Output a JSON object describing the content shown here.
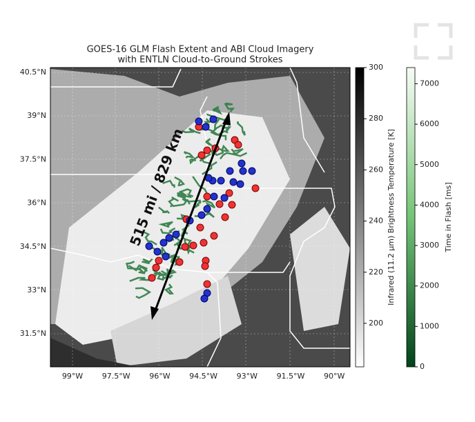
{
  "map": {
    "title": [
      "GOES-16 GLM Flash Extent and ABI Cloud Imagery",
      "with ENTLN Cloud-to-Ground Strokes"
    ],
    "lat_labels": [
      "40.5°N",
      "39°N",
      "37.5°N",
      "36°N",
      "34.5°N",
      "33°N",
      "31.5°N"
    ],
    "lon_labels": [
      "99°W",
      "97.5°W",
      "96°W",
      "94.5°W",
      "93°W",
      "91.5°W",
      "90°W"
    ],
    "annotation": "515 mi / 829 km",
    "colorbars": [
      {
        "label": "Infrared (11.2 μm) Brightness Temperature [K]",
        "lim": [
          183,
          300
        ],
        "ticks": [
          200,
          220,
          240,
          260,
          280,
          300
        ]
      },
      {
        "label": "Time in Flash [ms]",
        "lim": [
          0,
          7400
        ],
        "ticks": [
          0,
          1000,
          2000,
          3000,
          4000,
          5000,
          6000,
          7000
        ]
      }
    ]
  }
}
